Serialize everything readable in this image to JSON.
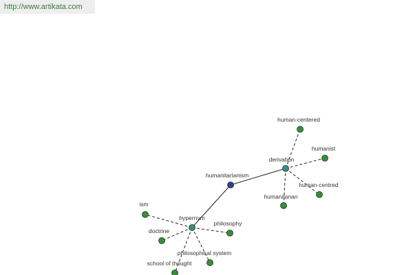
{
  "header": {
    "url": "http://www.artikata.com"
  },
  "nodes": [
    {
      "label": "humanitarianism"
    },
    {
      "label": "derivation"
    },
    {
      "label": "hypernym"
    },
    {
      "label": "human-centered"
    },
    {
      "label": "humanist"
    },
    {
      "label": "human-centred"
    },
    {
      "label": "humanitarian"
    },
    {
      "label": "ism"
    },
    {
      "label": "doctrine"
    },
    {
      "label": "philosophy"
    },
    {
      "label": "philosophical system"
    },
    {
      "label": "school of thought"
    }
  ]
}
